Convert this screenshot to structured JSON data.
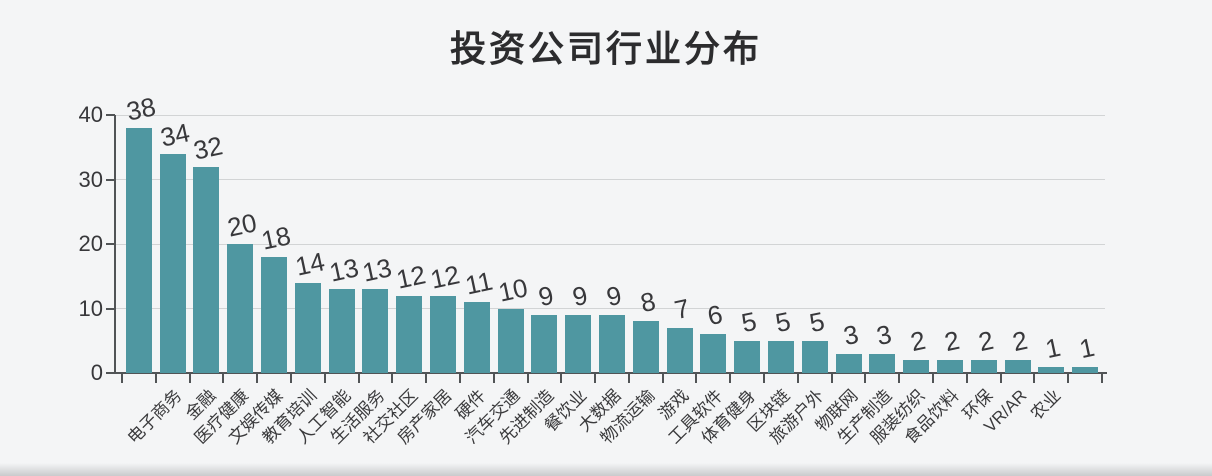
{
  "title": "投资公司行业分布",
  "chart_data": {
    "type": "bar",
    "title": "投资公司行业分布",
    "categories": [
      "电子商务",
      "金融",
      "医疗健康",
      "文娱传媒",
      "教育培训",
      "人工智能",
      "生活服务",
      "社交社区",
      "房产家居",
      "硬件",
      "汽车交通",
      "先进制造",
      "餐饮业",
      "大数据",
      "物流运输",
      "游戏",
      "工具软件",
      "体育健身",
      "区块链",
      "旅游户外",
      "物联网",
      "生产制造",
      "服装纺织",
      "食品饮料",
      "环保",
      "VR/AR",
      "农业",
      "",
      ""
    ],
    "values": [
      38,
      34,
      32,
      20,
      18,
      14,
      13,
      13,
      12,
      12,
      11,
      10,
      9,
      9,
      9,
      8,
      7,
      6,
      5,
      5,
      5,
      3,
      3,
      2,
      2,
      2,
      2,
      1,
      1
    ],
    "value_labels_shown": true,
    "xlabel": "",
    "ylabel": "",
    "ylim": [
      0,
      40
    ],
    "yticks": [
      0,
      10,
      20,
      30,
      40
    ],
    "grid": "horizontal",
    "legend_position": "none",
    "bar_color": "#4f97a1",
    "category_label_rotation_deg": 45
  },
  "colors": {
    "background": "#f4f5f6",
    "bar": "#4f97a1",
    "gridline": "#d2d4d5",
    "axis": "#515456",
    "text": "#38383b",
    "title_text": "#2c2c2e"
  }
}
